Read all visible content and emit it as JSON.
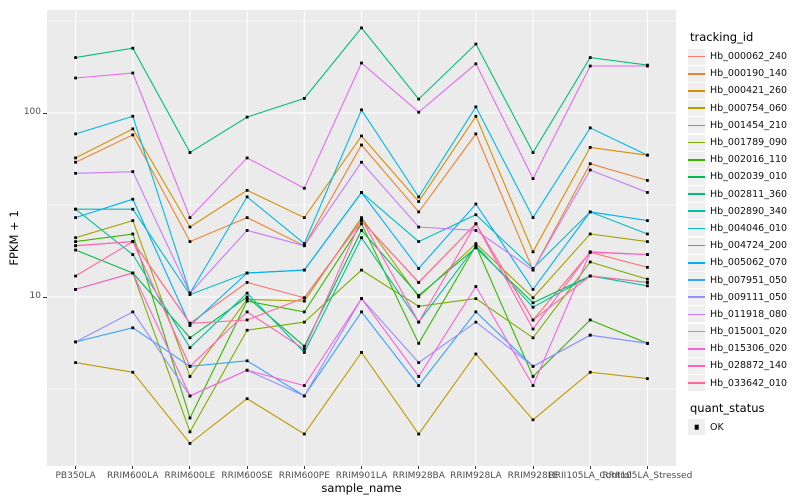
{
  "figure": {
    "background": "#FFFFFF",
    "panel_background": "#EBEBEB",
    "grid_color": "#FFFFFF",
    "tick_color": "#333333",
    "axis_text_color": "#4D4D4D"
  },
  "axes": {
    "x_title": "sample_name",
    "y_title": "FPKM + 1"
  },
  "legend": {
    "tracking_title": "tracking_id",
    "quant_title": "quant_status",
    "key_background": "#EFEFEF",
    "quant_items": [
      {
        "label": "OK",
        "symbol": "black-square"
      }
    ]
  },
  "chart_data": {
    "type": "line",
    "title": "",
    "xlabel": "sample_name",
    "ylabel": "FPKM + 1",
    "y_scale": "log10",
    "ylim": [
      1.2,
      363
    ],
    "grid": true,
    "legend_position": "right",
    "point_style": "small-black-square",
    "quant_status": "OK",
    "y_major_ticks": [
      {
        "label": "100",
        "value": 100
      },
      {
        "label": "10",
        "value": 10
      }
    ],
    "y_minor_gridlines": [
      316.23,
      31.62,
      3.162
    ],
    "categories": [
      "PB350LA",
      "RRIM600LA",
      "RRIM600LE",
      "RRIM600SE",
      "RRIM600PE",
      "RRIM901LA",
      "RRIM928BA",
      "RRIM928LA",
      "RRIM928LE",
      "RRII105LA_Control",
      "RRII105LA_Stressed"
    ],
    "series": [
      {
        "name": "Hb_000062_240",
        "color": "#F8766D",
        "values": [
          19,
          20,
          7.2,
          12,
          9.9,
          26,
          12,
          25,
          7.5,
          17.5,
          14.5
        ]
      },
      {
        "name": "Hb_000190_140",
        "color": "#EA8331",
        "values": [
          54,
          76,
          20,
          27,
          19,
          67,
          29,
          77,
          14,
          53,
          43
        ]
      },
      {
        "name": "Hb_000421_260",
        "color": "#D89000",
        "values": [
          57,
          82,
          24,
          38,
          27,
          75,
          33,
          96,
          17.6,
          65,
          59
        ]
      },
      {
        "name": "Hb_000754_060",
        "color": "#C09B00",
        "values": [
          4.4,
          3.9,
          1.6,
          2.8,
          1.8,
          5.0,
          1.8,
          4.9,
          2.15,
          3.9,
          3.6
        ]
      },
      {
        "name": "Hb_001454_210",
        "color": "#A3A500",
        "values": [
          21,
          26,
          3.7,
          9.7,
          9.5,
          27,
          10,
          19.5,
          9.9,
          22,
          20
        ]
      },
      {
        "name": "Hb_001789_090",
        "color": "#7CAE00",
        "values": [
          11,
          13.5,
          1.85,
          6.6,
          7.3,
          14,
          8.9,
          9.8,
          6.0,
          15.5,
          12.5
        ]
      },
      {
        "name": "Hb_002016_110",
        "color": "#39B600",
        "values": [
          20,
          22,
          2.2,
          9.5,
          8.3,
          25,
          5.6,
          19,
          3.7,
          7.5,
          5.6
        ]
      },
      {
        "name": "Hb_002039_010",
        "color": "#00BB4E",
        "values": [
          18,
          13.5,
          6.0,
          10,
          5.4,
          23,
          10.2,
          18.5,
          9.3,
          13,
          12
        ]
      },
      {
        "name": "Hb_002811_360",
        "color": "#00BF7D",
        "values": [
          200,
          225,
          61,
          95,
          120,
          290,
          119,
          237,
          61,
          200,
          182
        ]
      },
      {
        "name": "Hb_002890_340",
        "color": "#00C1A3",
        "values": [
          30,
          17,
          5.3,
          10.5,
          5.0,
          21,
          7.3,
          19,
          8.8,
          13,
          11.5
        ]
      },
      {
        "name": "Hb_004046_010",
        "color": "#00BFC4",
        "values": [
          30,
          30,
          10.3,
          13.5,
          14,
          37,
          20,
          28,
          14.3,
          29,
          22
        ]
      },
      {
        "name": "Hb_004724_200",
        "color": "#00BAE0",
        "values": [
          77,
          96,
          10.5,
          35,
          19.5,
          104,
          35,
          108,
          27,
          83,
          59
        ]
      },
      {
        "name": "Hb_005062_070",
        "color": "#00B0F6",
        "values": [
          27,
          34,
          7.0,
          13.5,
          14,
          37,
          14.3,
          32,
          11,
          29,
          26
        ]
      },
      {
        "name": "Hb_007951_050",
        "color": "#35A2FF",
        "values": [
          5.7,
          6.8,
          4.2,
          4.5,
          2.9,
          8.3,
          3.3,
          8.3,
          4.2,
          6.2,
          5.6
        ]
      },
      {
        "name": "Hb_009111_050",
        "color": "#9590FF",
        "values": [
          5.7,
          8.3,
          2.9,
          4.0,
          2.9,
          9.8,
          4.4,
          7.3,
          4.2,
          6.2,
          5.6
        ]
      },
      {
        "name": "Hb_011918_080",
        "color": "#C77CFF",
        "values": [
          47,
          48,
          10.5,
          23,
          19,
          54,
          24,
          23,
          14,
          49,
          37
        ]
      },
      {
        "name": "Hb_015001_020",
        "color": "#E76BF3",
        "values": [
          155,
          165,
          27,
          57,
          39,
          187,
          101,
          185,
          44,
          180,
          180
        ]
      },
      {
        "name": "Hb_015306_020",
        "color": "#FA62DB",
        "values": [
          11,
          13.5,
          2.9,
          4.0,
          3.3,
          9.8,
          3.7,
          11.4,
          3.3,
          17.5,
          17
        ]
      },
      {
        "name": "Hb_028872_140",
        "color": "#FF62BC",
        "values": [
          19,
          20,
          4.2,
          8.3,
          5.2,
          26.5,
          7.3,
          25,
          6.7,
          17.6,
          17
        ]
      },
      {
        "name": "Hb_033642_010",
        "color": "#FF6A98",
        "values": [
          13,
          20,
          7.2,
          7.5,
          9.9,
          26,
          12,
          25,
          7.5,
          13,
          12
        ]
      }
    ]
  }
}
